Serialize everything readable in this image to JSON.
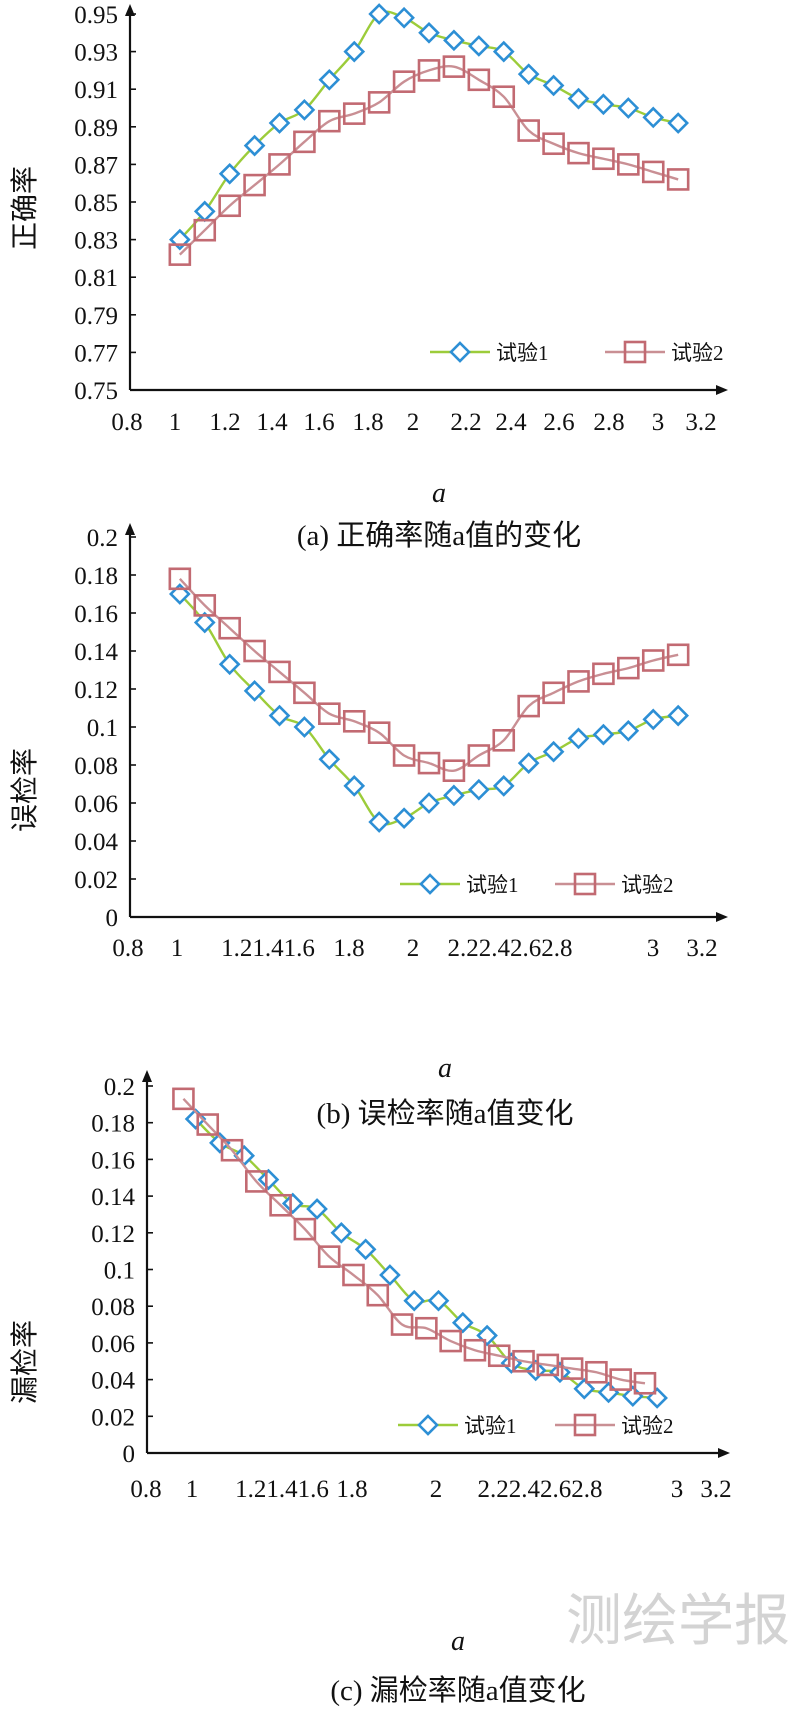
{
  "colors": {
    "line1": "#9ccc3a",
    "marker1": "#2d8fd5",
    "line2": "#c98f94",
    "marker2": "#c26a72",
    "axis": "#111111"
  },
  "watermark": "测绘学报",
  "chart_data": [
    {
      "type": "line",
      "panel": "a",
      "title": "(a) 正确率随a值的变化",
      "xlabel": "a",
      "ylabel": "正确率",
      "xlim": [
        0.8,
        3.2
      ],
      "ylim": [
        0.75,
        0.95
      ],
      "xticks": [
        "0.8",
        "1",
        "1.2",
        "1.4",
        "1.6",
        "1.8",
        "2",
        "2.2",
        "2.4",
        "2.6",
        "2.8",
        "3",
        "3.2"
      ],
      "yticks": [
        "0.75",
        "0.77",
        "0.79",
        "0.81",
        "0.83",
        "0.85",
        "0.87",
        "0.89",
        "0.91",
        "0.93",
        "0.95"
      ],
      "legend_position": "bottom-right",
      "series": [
        {
          "name": "试验1",
          "x": [
            1.0,
            1.1,
            1.2,
            1.3,
            1.4,
            1.5,
            1.6,
            1.7,
            1.8,
            1.9,
            2.0,
            2.1,
            2.2,
            2.3,
            2.4,
            2.5,
            2.6,
            2.7,
            2.8,
            2.9,
            3.0
          ],
          "y": [
            0.83,
            0.845,
            0.865,
            0.88,
            0.892,
            0.899,
            0.915,
            0.93,
            0.95,
            0.948,
            0.94,
            0.936,
            0.933,
            0.93,
            0.918,
            0.912,
            0.905,
            0.902,
            0.9,
            0.895,
            0.892
          ]
        },
        {
          "name": "试验2",
          "x": [
            1.0,
            1.1,
            1.2,
            1.3,
            1.4,
            1.5,
            1.6,
            1.7,
            1.8,
            1.9,
            2.0,
            2.1,
            2.2,
            2.3,
            2.4,
            2.5,
            2.6,
            2.7,
            2.8,
            2.9,
            3.0
          ],
          "y": [
            0.822,
            0.835,
            0.848,
            0.859,
            0.87,
            0.882,
            0.893,
            0.897,
            0.903,
            0.914,
            0.92,
            0.922,
            0.915,
            0.906,
            0.888,
            0.881,
            0.876,
            0.873,
            0.87,
            0.866,
            0.862
          ]
        }
      ]
    },
    {
      "type": "line",
      "panel": "b",
      "title": "(b) 误检率随a值变化",
      "xlabel": "a",
      "ylabel": "误检率",
      "xlim": [
        0.8,
        3.2
      ],
      "ylim": [
        0,
        0.2
      ],
      "xticks": [
        "0.8",
        "1",
        "1.21.41.6",
        "1.8",
        "2",
        "2.22.42.62.8",
        "3",
        "3.2"
      ],
      "yticks": [
        "0",
        "0.02",
        "0.04",
        "0.06",
        "0.08",
        "0.1",
        "0.12",
        "0.14",
        "0.16",
        "0.18",
        "0.2"
      ],
      "legend_position": "bottom-right",
      "series": [
        {
          "name": "试验1",
          "x": [
            1.0,
            1.1,
            1.2,
            1.3,
            1.4,
            1.5,
            1.6,
            1.7,
            1.8,
            1.9,
            2.0,
            2.1,
            2.2,
            2.3,
            2.4,
            2.5,
            2.6,
            2.7,
            2.8,
            2.9,
            3.0
          ],
          "y": [
            0.17,
            0.155,
            0.133,
            0.119,
            0.106,
            0.1,
            0.083,
            0.069,
            0.05,
            0.052,
            0.06,
            0.064,
            0.067,
            0.069,
            0.081,
            0.087,
            0.094,
            0.096,
            0.098,
            0.104,
            0.106
          ]
        },
        {
          "name": "试验2",
          "x": [
            1.0,
            1.1,
            1.2,
            1.3,
            1.4,
            1.5,
            1.6,
            1.7,
            1.8,
            1.9,
            2.0,
            2.1,
            2.2,
            2.3,
            2.4,
            2.5,
            2.6,
            2.7,
            2.8,
            2.9,
            3.0
          ],
          "y": [
            0.178,
            0.164,
            0.152,
            0.14,
            0.129,
            0.118,
            0.107,
            0.103,
            0.097,
            0.085,
            0.081,
            0.077,
            0.085,
            0.093,
            0.111,
            0.118,
            0.124,
            0.128,
            0.131,
            0.135,
            0.138
          ]
        }
      ]
    },
    {
      "type": "line",
      "panel": "c",
      "title": "(c) 漏检率随a值变化",
      "xlabel": "a",
      "ylabel": "漏检率",
      "xlim": [
        0.8,
        3.2
      ],
      "ylim": [
        0,
        0.2
      ],
      "xticks": [
        "0.8",
        "1",
        "1.21.41.6",
        "1.8",
        "2",
        "2.22.42.62.8",
        "3",
        "3.2"
      ],
      "yticks": [
        "0",
        "0.02",
        "0.04",
        "0.06",
        "0.08",
        "0.1",
        "0.12",
        "0.14",
        "0.16",
        "0.18",
        "0.2"
      ],
      "legend_position": "bottom-right",
      "series": [
        {
          "name": "试验1",
          "x": [
            1.0,
            1.1,
            1.2,
            1.3,
            1.4,
            1.5,
            1.6,
            1.7,
            1.8,
            1.9,
            2.0,
            2.1,
            2.2,
            2.3,
            2.4,
            2.5,
            2.6,
            2.7,
            2.8,
            2.9
          ],
          "y": [
            0.182,
            0.169,
            0.162,
            0.149,
            0.136,
            0.133,
            0.12,
            0.111,
            0.097,
            0.083,
            0.083,
            0.071,
            0.064,
            0.049,
            0.045,
            0.044,
            0.035,
            0.033,
            0.031,
            0.03
          ]
        },
        {
          "name": "试验2",
          "x": [
            0.95,
            1.05,
            1.15,
            1.25,
            1.35,
            1.45,
            1.55,
            1.65,
            1.75,
            1.85,
            1.95,
            2.05,
            2.15,
            2.25,
            2.35,
            2.45,
            2.55,
            2.65,
            2.75,
            2.85
          ],
          "y": [
            0.193,
            0.179,
            0.165,
            0.148,
            0.135,
            0.122,
            0.107,
            0.097,
            0.086,
            0.07,
            0.068,
            0.061,
            0.056,
            0.053,
            0.05,
            0.048,
            0.046,
            0.044,
            0.04,
            0.038
          ]
        }
      ]
    }
  ]
}
